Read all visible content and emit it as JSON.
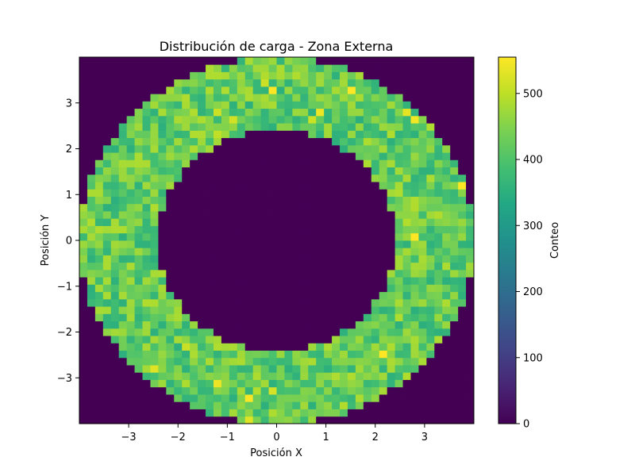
{
  "chart_data": {
    "type": "heatmap",
    "title": "Distribución de carga - Zona Externa",
    "xlabel": "Posición X",
    "ylabel": "Posición Y",
    "xlim": [
      -4,
      4
    ],
    "ylim": [
      -4,
      4
    ],
    "x_ticks": [
      -3,
      -2,
      -1,
      0,
      1,
      2,
      3
    ],
    "y_ticks": [
      -3,
      -2,
      -1,
      0,
      1,
      2,
      3
    ],
    "bins": [
      50,
      50
    ],
    "grid": false,
    "colormap": "viridis",
    "colorbar": {
      "label": "Conteo",
      "range": [
        0,
        555
      ],
      "ticks": [
        0,
        100,
        200,
        300,
        400,
        500
      ]
    },
    "annulus": {
      "inner_radius": 2.4,
      "outer_radius": 4.0,
      "typical_count": 420,
      "count_range": [
        330,
        555
      ],
      "empty_count": 0
    }
  }
}
